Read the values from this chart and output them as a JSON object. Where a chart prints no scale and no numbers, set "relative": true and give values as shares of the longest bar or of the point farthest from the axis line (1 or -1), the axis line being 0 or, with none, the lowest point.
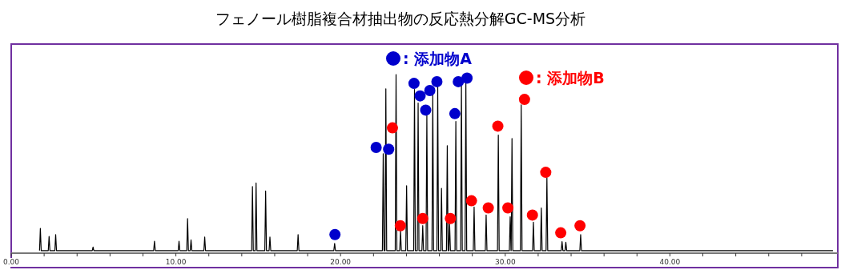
{
  "chart_data": {
    "type": "line",
    "title": "フェノール樹脂複合材抽出物の反応熱分解GC-MS分析",
    "relative": true,
    "legend": "top",
    "xlim": [
      0,
      50
    ],
    "xticks": [
      {
        "value": 0,
        "label": "0.00"
      },
      {
        "value": 2,
        "label": null
      },
      {
        "value": 4,
        "label": null
      },
      {
        "value": 6,
        "label": null
      },
      {
        "value": 8,
        "label": null
      },
      {
        "value": 10,
        "label": "10.00"
      },
      {
        "value": 12,
        "label": null
      },
      {
        "value": 14,
        "label": null
      },
      {
        "value": 16,
        "label": null
      },
      {
        "value": 18,
        "label": null
      },
      {
        "value": 20,
        "label": "20.00"
      },
      {
        "value": 22,
        "label": null
      },
      {
        "value": 24,
        "label": null
      },
      {
        "value": 26,
        "label": null
      },
      {
        "value": 28,
        "label": null
      },
      {
        "value": 30,
        "label": "30.00"
      },
      {
        "value": 32,
        "label": null
      },
      {
        "value": 34,
        "label": null
      },
      {
        "value": 36,
        "label": null
      },
      {
        "value": 38,
        "label": null
      },
      {
        "value": 40,
        "label": "40.00"
      },
      {
        "value": 42,
        "label": null
      },
      {
        "value": 44,
        "label": null
      },
      {
        "value": 46,
        "label": null
      },
      {
        "value": 48,
        "label": null
      }
    ],
    "series": [
      {
        "color": "#000000",
        "x": [
          1.72,
          1.77,
          1.82,
          2.25,
          2.3,
          2.35,
          2.65,
          2.7,
          2.75,
          4.92,
          4.97,
          5.02,
          8.65,
          8.7,
          8.75,
          10.14,
          10.19,
          10.24,
          10.66,
          10.71,
          10.76,
          10.87,
          10.92,
          10.97,
          11.7,
          11.75,
          11.8,
          14.6,
          14.65,
          14.7,
          14.82,
          14.87,
          14.92,
          15.4,
          15.45,
          15.5,
          15.66,
          15.71,
          15.76,
          17.37,
          17.42,
          17.47,
          19.59,
          19.64,
          19.69,
          22.54,
          22.59,
          22.64,
          22.7,
          22.75,
          22.8,
          23.32,
          23.37,
          23.42,
          23.59,
          23.64,
          23.69,
          23.96,
          24.01,
          24.06,
          24.44,
          24.49,
          24.54,
          24.66,
          24.71,
          24.76,
          24.94,
          24.99,
          25.04,
          25.19,
          25.24,
          25.29,
          25.55,
          25.6,
          25.65,
          25.85,
          25.9,
          25.95,
          26.08,
          26.13,
          26.18,
          26.43,
          26.48,
          26.53,
          26.57,
          26.62,
          26.67,
          26.95,
          27.0,
          27.05,
          27.29,
          27.34,
          27.39,
          27.56,
          27.61,
          27.66,
          28.06,
          28.11,
          28.16,
          28.79,
          28.84,
          28.89,
          29.53,
          29.58,
          29.63,
          30.25,
          30.3,
          30.35,
          30.36,
          30.41,
          30.46,
          30.92,
          30.97,
          31.02,
          31.66,
          31.71,
          31.76,
          32.14,
          32.19,
          32.24,
          32.48,
          32.53,
          32.58,
          33.4,
          33.45,
          33.5,
          33.63,
          33.68,
          33.73,
          34.53,
          34.58,
          34.63,
          49.9
        ],
        "values": [
          0.01,
          0.135,
          0.01,
          0.01,
          0.09,
          0.01,
          0.01,
          0.1,
          0.01,
          0.01,
          0.03,
          0.01,
          0.01,
          0.063,
          0.01,
          0.01,
          0.063,
          0.01,
          0.01,
          0.19,
          0.01,
          0.01,
          0.07,
          0.01,
          0.01,
          0.086,
          0.01,
          0.01,
          0.37,
          0.01,
          0.01,
          0.39,
          0.01,
          0.01,
          0.345,
          0.01,
          0.01,
          0.086,
          0.01,
          0.01,
          0.1,
          0.01,
          0.01,
          0.05,
          0.01,
          0.01,
          0.555,
          0.01,
          0.01,
          0.92,
          0.01,
          0.01,
          1.0,
          0.01,
          0.01,
          0.12,
          0.01,
          0.01,
          0.375,
          0.01,
          0.01,
          0.916,
          0.01,
          0.01,
          0.84,
          0.01,
          0.01,
          0.15,
          0.01,
          0.01,
          0.77,
          0.01,
          0.01,
          0.886,
          0.01,
          0.01,
          0.93,
          0.01,
          0.01,
          0.36,
          0.01,
          0.01,
          0.6,
          0.01,
          0.01,
          0.16,
          0.01,
          0.01,
          0.736,
          0.01,
          0.01,
          0.94,
          0.01,
          0.01,
          0.95,
          0.01,
          0.01,
          0.255,
          0.01,
          0.01,
          0.21,
          0.01,
          0.01,
          0.66,
          0.01,
          0.01,
          0.2,
          0.01,
          0.01,
          0.64,
          0.01,
          0.01,
          0.83,
          0.01,
          0.01,
          0.17,
          0.01,
          0.01,
          0.25,
          0.01,
          0.01,
          0.42,
          0.01,
          0.01,
          0.06,
          0.01,
          0.01,
          0.057,
          0.01,
          0.01,
          0.1,
          0.01,
          0.01
        ]
      },
      {
        "type": "scatter",
        "marker": "circle",
        "name": ": 添加物A",
        "color": "#0000cc",
        "x": [
          19.66,
          22.16,
          22.92,
          24.46,
          24.83,
          25.17,
          25.42,
          25.85,
          26.94,
          27.15,
          27.68
        ],
        "values": [
          0.1,
          0.59,
          0.58,
          0.95,
          0.88,
          0.8,
          0.91,
          0.96,
          0.78,
          0.96,
          0.98
        ]
      },
      {
        "type": "scatter",
        "marker": "circle",
        "name": ": 添加物B",
        "color": "#ff0000",
        "x": [
          23.15,
          23.63,
          24.99,
          26.67,
          27.95,
          28.97,
          29.55,
          30.16,
          31.17,
          31.65,
          32.46,
          33.37,
          34.54
        ],
        "values": [
          0.7,
          0.15,
          0.19,
          0.19,
          0.29,
          0.25,
          0.71,
          0.25,
          0.86,
          0.21,
          0.45,
          0.11,
          0.15
        ]
      }
    ]
  }
}
